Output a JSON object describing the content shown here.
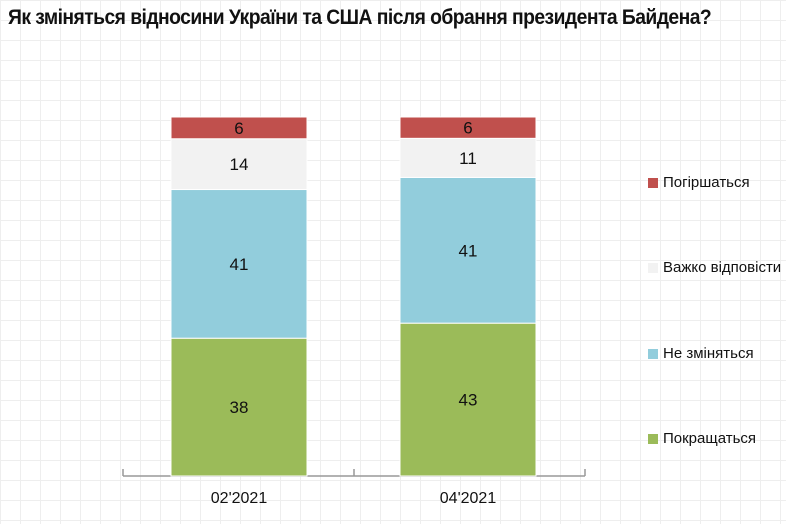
{
  "chart_data": {
    "type": "bar",
    "stacked": true,
    "title": "Як зміняться відносини України та США після обрання президента Байдена?",
    "categories": [
      "02'2021",
      "04'2021"
    ],
    "series": [
      {
        "name": "Покращаться",
        "color": "#9bbb59",
        "values": [
          38,
          43
        ]
      },
      {
        "name": "Не зміняться",
        "color": "#92cddc",
        "values": [
          41,
          41
        ]
      },
      {
        "name": "Важко відповісти",
        "color": "#f2f2f2",
        "values": [
          14,
          11
        ]
      },
      {
        "name": "Погіршаться",
        "color": "#c0504d",
        "values": [
          6,
          6
        ]
      }
    ],
    "legend_order": [
      3,
      2,
      1,
      0
    ],
    "legend_position": "right",
    "xlabel": "",
    "ylabel": "",
    "ylim": [
      0,
      100
    ],
    "grid": false
  }
}
